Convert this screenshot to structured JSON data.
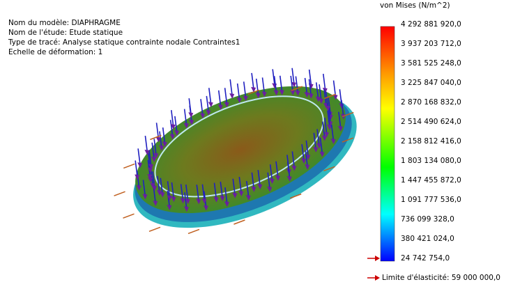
{
  "info": {
    "lines": [
      "Nom du modèle: DIAPHRAGME",
      "Nom de l'étude: Etude statique",
      "Type de tracé: Analyse statique contrainte nodale Contraintes1",
      "Echelle de déformation: 1"
    ]
  },
  "legend": {
    "title": "von Mises (N/m^2)",
    "labels": [
      "4 292 881 920,0",
      "3 937 203 712,0",
      "3 581 525 248,0",
      "3 225 847 040,0",
      "2 870 168 832,0",
      "2 514 490 624,0",
      "2 158 812 416,0",
      "1 803 134 080,0",
      "1 447 455 872,0",
      "1 091 777 536,0",
      "736 099 328,0",
      "380 421 024,0",
      "24 742 754,0"
    ],
    "yield_limit": "Limite d'élasticité: 59 000 000,0"
  }
}
